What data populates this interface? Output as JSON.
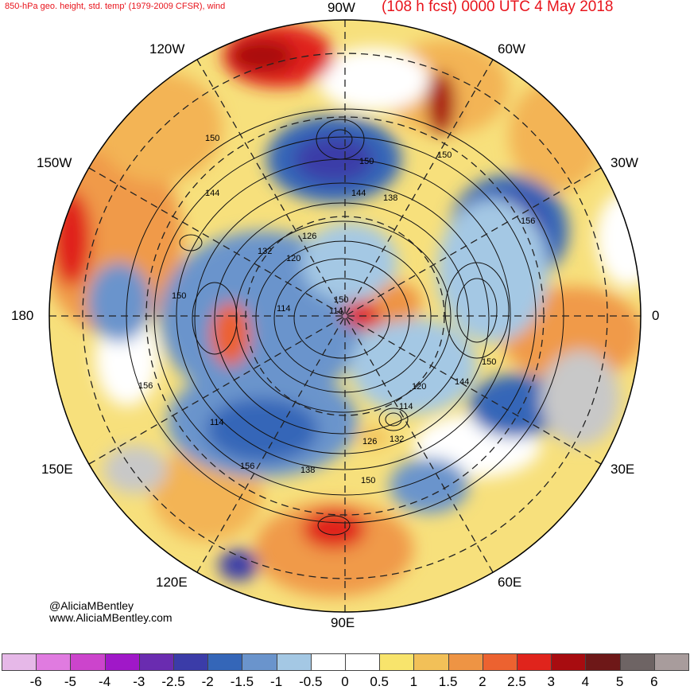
{
  "title": {
    "left": "850-hPa geo. height, std. temp' (1979-2009 CFSR), wind",
    "right": "(108 h fcst) 0000 UTC 4 May 2018"
  },
  "longitude_labels": {
    "n": "90W",
    "ne": "60W",
    "ene": "30W",
    "e": "0",
    "ese": "30E",
    "se": "60E",
    "s": "90E",
    "sw": "120E",
    "wsw": "150E",
    "w": "180",
    "wnw": "150W",
    "nw": "120W"
  },
  "contour_labels": [
    "150",
    "150",
    "150",
    "150",
    "150",
    "150",
    "150",
    "144",
    "144",
    "144",
    "138",
    "138",
    "132",
    "132",
    "126",
    "126",
    "120",
    "120",
    "114",
    "114",
    "114",
    "114",
    "156",
    "156",
    "156"
  ],
  "credit": {
    "handle": "@AliciaMBentley",
    "site": "www.AliciaMBentley.com"
  },
  "colorbar": {
    "colors": [
      "#e6b8e8",
      "#e07be0",
      "#cc44cc",
      "#a018c8",
      "#6a2cb0",
      "#3b3ca8",
      "#3466b8",
      "#6a94cc",
      "#a4c8e4",
      "#ffffff",
      "#ffffff",
      "#f8e46c",
      "#f2c058",
      "#ee9444",
      "#ec6230",
      "#e0241c",
      "#a80c10",
      "#6e1818",
      "#6e6464",
      "#a89c9c"
    ],
    "ticks": [
      "-6",
      "-5",
      "-4",
      "-3",
      "-2.5",
      "-2",
      "-1.5",
      "-1",
      "-0.5",
      "0",
      "0.5",
      "1",
      "1.5",
      "2",
      "2.5",
      "3",
      "4",
      "5",
      "6"
    ]
  }
}
